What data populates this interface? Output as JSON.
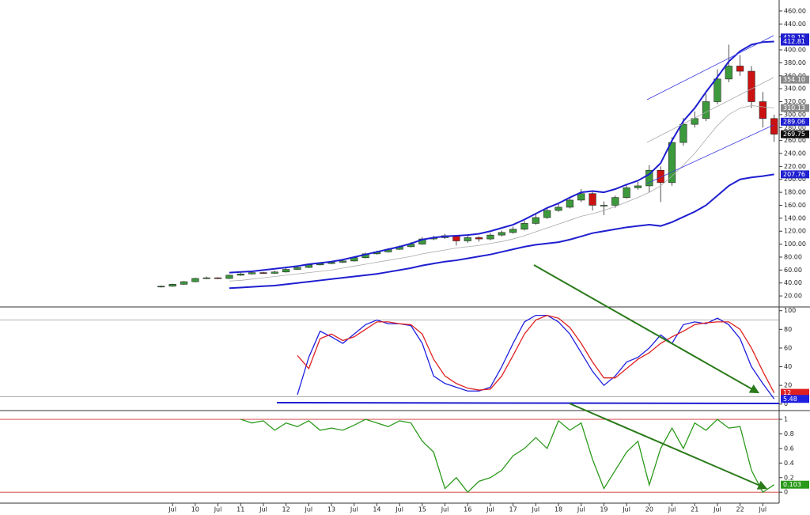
{
  "chart_data": [
    {
      "type": "candlestick",
      "x": [
        2009.25,
        2009.5,
        2009.75,
        2010,
        2010.25,
        2010.5,
        2010.75,
        2011,
        2011.25,
        2011.5,
        2011.75,
        2012,
        2012.25,
        2012.5,
        2012.75,
        2013,
        2013.25,
        2013.5,
        2013.75,
        2014,
        2014.25,
        2014.5,
        2014.75,
        2015,
        2015.25,
        2015.5,
        2015.75,
        2016,
        2016.25,
        2016.5,
        2016.75,
        2017,
        2017.25,
        2017.5,
        2017.75,
        2018,
        2018.25,
        2018.5,
        2018.75,
        2019,
        2019.25,
        2019.5,
        2019.75,
        2020,
        2020.25,
        2020.5,
        2020.75,
        2021,
        2021.25,
        2021.5,
        2021.75,
        2022,
        2022.25,
        2022.5,
        2022.75
      ],
      "open": [
        34,
        35,
        38,
        42,
        47,
        48,
        47,
        52,
        54,
        56,
        55,
        57,
        61,
        64,
        68,
        70,
        72,
        74,
        79,
        85,
        88,
        92,
        96,
        100,
        108,
        110,
        113,
        105,
        110,
        108,
        114,
        118,
        123,
        132,
        141,
        152,
        157,
        168,
        178,
        160,
        160,
        172,
        187,
        190,
        214,
        195,
        257,
        285,
        294,
        320,
        355,
        375,
        367,
        320,
        294
      ],
      "high": [
        36,
        39,
        43,
        48,
        50,
        49,
        53,
        56,
        58,
        57,
        59,
        63,
        66,
        70,
        72,
        74,
        76,
        81,
        87,
        90,
        94,
        98,
        103,
        111,
        113,
        116,
        114,
        113,
        112,
        117,
        121,
        127,
        136,
        146,
        157,
        162,
        173,
        185,
        182,
        166,
        175,
        192,
        196,
        222,
        220,
        265,
        295,
        305,
        332,
        370,
        408,
        392,
        375,
        335,
        300
      ],
      "low": [
        33,
        34,
        37,
        41,
        46,
        46,
        46,
        51,
        53,
        54,
        54,
        56,
        60,
        63,
        67,
        69,
        71,
        73,
        78,
        84,
        87,
        91,
        95,
        99,
        106,
        108,
        98,
        102,
        104,
        106,
        112,
        116,
        121,
        130,
        139,
        150,
        155,
        165,
        152,
        145,
        156,
        170,
        184,
        180,
        165,
        190,
        252,
        280,
        290,
        316,
        350,
        360,
        310,
        280,
        258
      ],
      "close": [
        35,
        38,
        42,
        47,
        48,
        47,
        52,
        54,
        56,
        55,
        57,
        61,
        64,
        68,
        70,
        72,
        74,
        79,
        85,
        88,
        92,
        96,
        100,
        108,
        110,
        113,
        105,
        110,
        108,
        114,
        118,
        123,
        132,
        141,
        152,
        157,
        168,
        178,
        160,
        160,
        172,
        187,
        190,
        214,
        195,
        257,
        285,
        294,
        320,
        355,
        375,
        367,
        320,
        294,
        269.75
      ],
      "up_color": "#3c9a3c",
      "down_color": "#cc1111",
      "series": [
        {
          "color": "#1f1fd0",
          "style": "thick",
          "values": [
            null,
            null,
            null,
            null,
            null,
            null,
            56,
            57,
            58,
            60,
            62,
            64,
            66,
            69,
            71,
            73,
            76,
            80,
            84,
            88,
            92,
            96,
            101,
            107,
            110,
            112,
            113,
            114,
            116,
            120,
            125,
            130,
            138,
            147,
            156,
            163,
            172,
            180,
            182,
            180,
            185,
            192,
            198,
            208,
            225,
            260,
            290,
            310,
            335,
            358,
            382,
            398,
            408,
            412,
            412.81
          ]
        },
        {
          "color": "#1f1fd0",
          "style": "thick",
          "values": [
            null,
            null,
            null,
            null,
            null,
            null,
            32,
            33,
            34,
            35,
            36,
            38,
            40,
            42,
            44,
            46,
            48,
            50,
            52,
            54,
            57,
            60,
            63,
            67,
            70,
            73,
            75,
            78,
            81,
            84,
            88,
            92,
            96,
            99,
            101,
            103,
            107,
            112,
            117,
            120,
            123,
            126,
            128,
            130,
            128,
            134,
            142,
            150,
            160,
            175,
            190,
            200,
            203,
            205,
            207.76
          ]
        },
        {
          "color": "#aaaaaa",
          "style": "thin",
          "values": [
            null,
            null,
            null,
            null,
            null,
            null,
            43,
            44,
            46,
            48,
            50,
            52,
            54,
            56,
            58,
            60,
            63,
            66,
            69,
            72,
            75,
            78,
            81,
            85,
            88,
            91,
            94,
            96,
            98,
            101,
            104,
            108,
            113,
            119,
            125,
            131,
            137,
            143,
            147,
            152,
            158,
            165,
            172,
            180,
            190,
            205,
            222,
            240,
            262,
            283,
            300,
            310,
            314,
            312,
            310.13
          ]
        }
      ],
      "xlim": [
        2005.7,
        2022.86
      ],
      "ylim": [
        3,
        477
      ],
      "yticks": [
        {
          "value": 20,
          "label": "20.00"
        },
        {
          "value": 40,
          "label": "40.00"
        },
        {
          "value": 60,
          "label": "60.00"
        },
        {
          "value": 80,
          "label": "80.00"
        },
        {
          "value": 100,
          "label": "100.00"
        },
        {
          "value": 120,
          "label": "120.00"
        },
        {
          "value": 140,
          "label": "140.00"
        },
        {
          "value": 160,
          "label": "160.00"
        },
        {
          "value": 180,
          "label": "180.00"
        },
        {
          "value": 200,
          "label": "200.00"
        },
        {
          "value": 220,
          "label": "220.00"
        },
        {
          "value": 240,
          "label": "240.00"
        },
        {
          "value": 260,
          "label": "260.00"
        },
        {
          "value": 280,
          "label": "280.00"
        },
        {
          "value": 300,
          "label": "300.00"
        },
        {
          "value": 320,
          "label": "320.00"
        },
        {
          "value": 340,
          "label": "340.00"
        },
        {
          "value": 360,
          "label": "360.00"
        },
        {
          "value": 380,
          "label": "380.00"
        },
        {
          "value": 400,
          "label": "400.00"
        },
        {
          "value": 420,
          "label": "420.00"
        },
        {
          "value": 440,
          "label": "440.00"
        },
        {
          "value": 460,
          "label": "460.00"
        }
      ],
      "tags": [
        {
          "value": 419.15,
          "label": "419.15",
          "color": "#1f1fd0"
        },
        {
          "value": 412.81,
          "label": "412.81",
          "color": "#1f1fd0"
        },
        {
          "value": 354.1,
          "label": "354.10",
          "color": "#8a8a8a"
        },
        {
          "value": 310.13,
          "label": "310.13",
          "color": "#8a8a8a"
        },
        {
          "value": 289.06,
          "label": "289.06",
          "color": "#1f1fd0"
        },
        {
          "value": 269.75,
          "label": "269.75",
          "color": "#111111"
        },
        {
          "value": 207.76,
          "label": "207.76",
          "color": "#1f1fd0"
        }
      ]
    },
    {
      "type": "line",
      "x": [
        2009.25,
        2009.5,
        2009.75,
        2010,
        2010.25,
        2010.5,
        2010.75,
        2011,
        2011.25,
        2011.5,
        2011.75,
        2012,
        2012.25,
        2012.5,
        2012.75,
        2013,
        2013.25,
        2013.5,
        2013.75,
        2014,
        2014.25,
        2014.5,
        2014.75,
        2015,
        2015.25,
        2015.5,
        2015.75,
        2016,
        2016.25,
        2016.5,
        2016.75,
        2017,
        2017.25,
        2017.5,
        2017.75,
        2018,
        2018.25,
        2018.5,
        2018.75,
        2019,
        2019.25,
        2019.5,
        2019.75,
        2020,
        2020.25,
        2020.5,
        2020.75,
        2021,
        2021.25,
        2021.5,
        2021.75,
        2022,
        2022.25,
        2022.5,
        2022.75
      ],
      "series": [
        {
          "color": "#1f1fe0",
          "style": "normal",
          "values": [
            null,
            null,
            null,
            null,
            null,
            null,
            null,
            null,
            null,
            null,
            null,
            null,
            10,
            50,
            78,
            72,
            65,
            75,
            85,
            90,
            86,
            86,
            84,
            65,
            30,
            22,
            18,
            14,
            14,
            18,
            40,
            65,
            88,
            95,
            95,
            88,
            75,
            55,
            35,
            20,
            30,
            45,
            50,
            60,
            74,
            65,
            85,
            88,
            86,
            92,
            85,
            70,
            40,
            22,
            5.48
          ]
        },
        {
          "color": "#e02020",
          "style": "normal",
          "values": [
            null,
            null,
            null,
            null,
            null,
            null,
            null,
            null,
            null,
            null,
            null,
            null,
            52,
            38,
            70,
            75,
            68,
            72,
            80,
            88,
            88,
            86,
            85,
            75,
            48,
            30,
            22,
            17,
            15,
            16,
            30,
            52,
            75,
            90,
            95,
            92,
            82,
            65,
            45,
            28,
            28,
            38,
            48,
            55,
            65,
            72,
            78,
            85,
            87,
            88,
            88,
            80,
            60,
            35,
            12
          ]
        }
      ],
      "xlim": [
        2005.7,
        2022.86
      ],
      "ylim": [
        -7,
        104
      ],
      "yticks": [
        0,
        20,
        40,
        60,
        80,
        100
      ],
      "reference_lines": [
        90,
        8
      ],
      "reference_color": "#999999",
      "tags": [
        {
          "value": 12,
          "label": "12",
          "color": "#e02020"
        },
        {
          "value": 5.48,
          "label": "5.48",
          "color": "#1f1fe0"
        }
      ]
    },
    {
      "type": "line",
      "x": [
        2009.25,
        2009.5,
        2009.75,
        2010,
        2010.25,
        2010.5,
        2010.75,
        2011,
        2011.25,
        2011.5,
        2011.75,
        2012,
        2012.25,
        2012.5,
        2012.75,
        2013,
        2013.25,
        2013.5,
        2013.75,
        2014,
        2014.25,
        2014.5,
        2014.75,
        2015,
        2015.25,
        2015.5,
        2015.75,
        2016,
        2016.25,
        2016.5,
        2016.75,
        2017,
        2017.25,
        2017.5,
        2017.75,
        2018,
        2018.25,
        2018.5,
        2018.75,
        2019,
        2019.25,
        2019.5,
        2019.75,
        2020,
        2020.25,
        2020.5,
        2020.75,
        2021,
        2021.25,
        2021.5,
        2021.75,
        2022,
        2022.25,
        2022.5,
        2022.75
      ],
      "series": [
        {
          "color": "#2a9a1a",
          "style": "normal",
          "values": [
            null,
            null,
            null,
            null,
            null,
            null,
            null,
            1,
            0.95,
            0.98,
            0.85,
            0.95,
            0.9,
            0.98,
            0.85,
            0.88,
            0.85,
            0.92,
            1,
            0.95,
            0.9,
            0.98,
            0.95,
            0.7,
            0.55,
            0.05,
            0.2,
            0,
            0.15,
            0.2,
            0.3,
            0.5,
            0.6,
            0.75,
            0.6,
            0.98,
            0.85,
            0.95,
            0.45,
            0.05,
            0.3,
            0.55,
            0.7,
            0.1,
            0.6,
            0.88,
            0.6,
            0.95,
            0.85,
            1,
            0.88,
            0.9,
            0.3,
            0,
            0.103
          ]
        }
      ],
      "xlim": [
        2005.7,
        2022.86
      ],
      "ylim": [
        -0.15,
        1.12
      ],
      "yticks": [
        0,
        0.2,
        0.4,
        0.6,
        0.8,
        1
      ],
      "reference_lines": [
        1,
        0
      ],
      "reference_color": "#d03030",
      "tags": [
        {
          "value": 0.103,
          "label": "0.103",
          "color": "#2a9a1a"
        }
      ],
      "xticks": [
        {
          "value": 2009.5,
          "label": "Jul"
        },
        {
          "value": 2010,
          "label": "10"
        },
        {
          "value": 2010.5,
          "label": "Jul"
        },
        {
          "value": 2011,
          "label": "11"
        },
        {
          "value": 2011.5,
          "label": "Jul"
        },
        {
          "value": 2012,
          "label": "12"
        },
        {
          "value": 2012.5,
          "label": "Jul"
        },
        {
          "value": 2013,
          "label": "13"
        },
        {
          "value": 2013.5,
          "label": "Jul"
        },
        {
          "value": 2014,
          "label": "14"
        },
        {
          "value": 2014.5,
          "label": "Jul"
        },
        {
          "value": 2015,
          "label": "15"
        },
        {
          "value": 2015.5,
          "label": "Jul"
        },
        {
          "value": 2016,
          "label": "16"
        },
        {
          "value": 2016.5,
          "label": "Jul"
        },
        {
          "value": 2017,
          "label": "17"
        },
        {
          "value": 2017.5,
          "label": "Jul"
        },
        {
          "value": 2018,
          "label": "18"
        },
        {
          "value": 2018.5,
          "label": "Jul"
        },
        {
          "value": 2019,
          "label": "19"
        },
        {
          "value": 2019.5,
          "label": "Jul"
        },
        {
          "value": 2020,
          "label": "20"
        },
        {
          "value": 2020.5,
          "label": "Jul"
        },
        {
          "value": 2021,
          "label": "21"
        },
        {
          "value": 2021.5,
          "label": "Jul"
        },
        {
          "value": 2022,
          "label": "22"
        },
        {
          "value": 2022.5,
          "label": "Jul"
        }
      ]
    }
  ]
}
